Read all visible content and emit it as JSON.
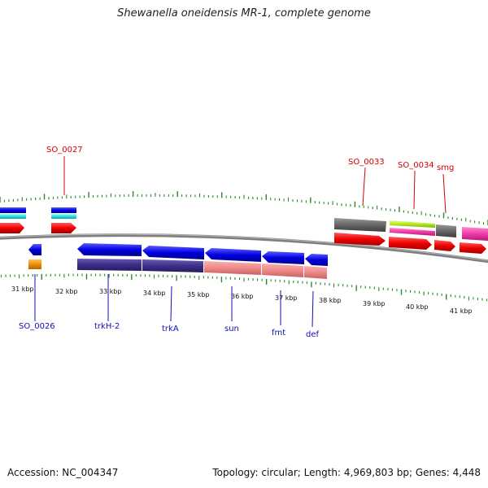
{
  "title": "Shewanella oneidensis MR-1, complete genome",
  "footer": {
    "accession": "Accession: NC_004347",
    "summary": "Topology: circular; Length: 4,969,803 bp; Genes: 4,448"
  },
  "colors": {
    "background": "#ffffff",
    "backbone": "#7f7f7f",
    "tick": "#2a8a2a",
    "label_top": "#d40000",
    "label_bottom": "#1010b0",
    "scale_text": "#111111"
  },
  "scale": {
    "unit": "kbp",
    "labels": [
      "31 kbp",
      "32 kbp",
      "33 kbp",
      "34 kbp",
      "35 kbp",
      "36 kbp",
      "37 kbp",
      "38 kbp",
      "39 kbp",
      "40 kbp",
      "41 kbp"
    ]
  },
  "top_labels": [
    {
      "id": "SO_0027",
      "text": "SO_0027"
    },
    {
      "id": "SO_0033",
      "text": "SO_0033"
    },
    {
      "id": "SO_0034",
      "text": "SO_0034"
    },
    {
      "id": "smg",
      "text": "smg"
    }
  ],
  "bottom_labels": [
    {
      "id": "SO_0026",
      "text": "SO_0026"
    },
    {
      "id": "trkH-2",
      "text": "trkH-2"
    },
    {
      "id": "trkA",
      "text": "trkA"
    },
    {
      "id": "sun",
      "text": "sun"
    },
    {
      "id": "fmt",
      "text": "fmt"
    },
    {
      "id": "def",
      "text": "def"
    }
  ]
}
